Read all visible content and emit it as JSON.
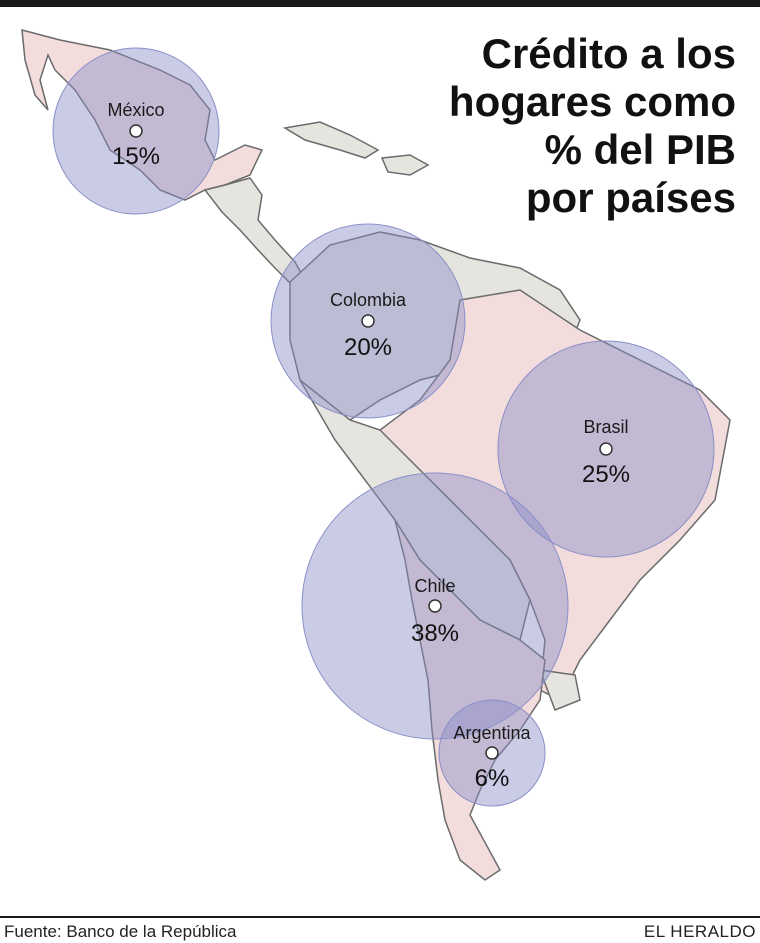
{
  "title_lines": [
    "Crédito a los",
    "hogares como",
    "% del PIB",
    "por países"
  ],
  "source": "Fuente: Banco de la República",
  "brand": "EL HERALDO",
  "colors": {
    "land_highlight": "#f2dcdc",
    "land_other": "#e6e4df",
    "border": "#6b6b6b",
    "bubble": "#8a8fc7"
  },
  "countries": [
    {
      "name": "México",
      "value_label": "15%",
      "value": 15
    },
    {
      "name": "Colombia",
      "value_label": "20%",
      "value": 20
    },
    {
      "name": "Brasil",
      "value_label": "25%",
      "value": 25
    },
    {
      "name": "Chile",
      "value_label": "38%",
      "value": 38
    },
    {
      "name": "Argentina",
      "value_label": "6%",
      "value": 6
    }
  ]
}
